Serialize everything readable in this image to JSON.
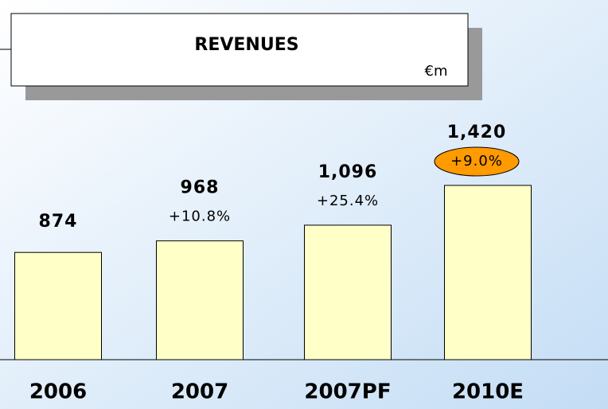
{
  "chart_data": {
    "type": "bar",
    "title": "REVENUES",
    "unit": "€m",
    "categories": [
      "2006",
      "2007",
      "2007PF",
      "2010E"
    ],
    "values": [
      874,
      968,
      1096,
      1420
    ],
    "value_labels": [
      "874",
      "968",
      "1,096",
      "1,420"
    ],
    "growth_labels": [
      null,
      "+10.8%",
      "+25.4%",
      "+9.0%"
    ],
    "color": "#ffffc8",
    "highlight_index": 3,
    "highlight_color": "#ff9a00"
  }
}
